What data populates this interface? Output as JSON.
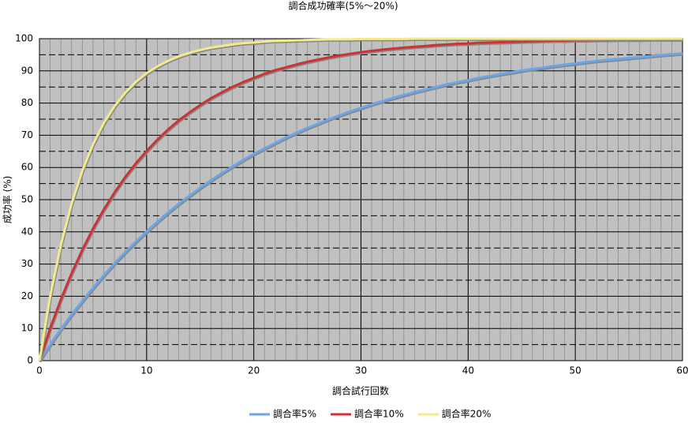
{
  "chart_data": {
    "type": "line",
    "title": "調合成功確率(5%〜20%)",
    "x_label": "調合試行回数",
    "y_label": "成功率 (%)",
    "x": [
      0,
      1,
      2,
      3,
      4,
      5,
      6,
      7,
      8,
      9,
      10,
      11,
      12,
      13,
      14,
      15,
      16,
      17,
      18,
      19,
      20,
      21,
      22,
      23,
      24,
      25,
      26,
      27,
      28,
      29,
      30,
      31,
      32,
      33,
      34,
      35,
      36,
      37,
      38,
      39,
      40,
      41,
      42,
      43,
      44,
      45,
      46,
      47,
      48,
      49,
      50,
      51,
      52,
      53,
      54,
      55,
      56,
      57,
      58,
      59,
      60
    ],
    "series": [
      {
        "name": "調合率5%",
        "color": "#6aa6e8",
        "values": [
          0,
          5.0,
          9.8,
          14.3,
          18.5,
          22.6,
          26.5,
          30.2,
          33.7,
          37.0,
          40.1,
          43.1,
          46.0,
          48.7,
          51.2,
          53.7,
          56.0,
          58.2,
          60.3,
          62.3,
          64.2,
          65.9,
          67.6,
          69.3,
          70.8,
          72.3,
          73.6,
          75.0,
          76.2,
          77.4,
          78.5,
          79.6,
          80.6,
          81.6,
          82.5,
          83.4,
          84.2,
          85.0,
          85.8,
          86.5,
          87.1,
          87.8,
          88.4,
          89.0,
          89.5,
          90.1,
          90.6,
          91.0,
          91.5,
          91.9,
          92.3,
          92.7,
          93.1,
          93.4,
          93.7,
          94.0,
          94.3,
          94.6,
          94.9,
          95.2,
          95.4
        ]
      },
      {
        "name": "調合率10%",
        "color": "#cc3333",
        "values": [
          0,
          10.0,
          19.0,
          27.1,
          34.4,
          41.0,
          46.9,
          52.2,
          57.0,
          61.3,
          65.1,
          68.6,
          71.8,
          74.6,
          77.1,
          79.4,
          81.5,
          83.3,
          85.0,
          86.5,
          87.8,
          89.1,
          90.2,
          91.1,
          92.0,
          92.8,
          93.5,
          94.2,
          94.8,
          95.3,
          95.8,
          96.2,
          96.6,
          96.9,
          97.2,
          97.5,
          97.7,
          98.0,
          98.2,
          98.4,
          98.5,
          98.7,
          98.8,
          98.9,
          99.0,
          99.1,
          99.2,
          99.3,
          99.4,
          99.4,
          99.5,
          99.5,
          99.6,
          99.6,
          99.7,
          99.7,
          99.7,
          99.8,
          99.8,
          99.8,
          99.8
        ]
      },
      {
        "name": "調合率20%",
        "color": "#f2ea8c",
        "values": [
          0,
          20.0,
          36.0,
          48.8,
          59.0,
          67.2,
          73.8,
          79.0,
          83.2,
          86.6,
          89.3,
          91.4,
          93.1,
          94.5,
          95.6,
          96.5,
          97.2,
          97.7,
          98.2,
          98.6,
          98.8,
          99.1,
          99.3,
          99.4,
          99.5,
          99.6,
          99.7,
          99.8,
          99.8,
          99.8,
          99.9,
          99.9,
          99.9,
          99.9,
          99.9,
          100.0,
          100.0,
          100.0,
          100.0,
          100.0,
          100.0,
          100.0,
          100.0,
          100.0,
          100.0,
          100.0,
          100.0,
          100.0,
          100.0,
          100.0,
          100.0,
          100.0,
          100.0,
          100.0,
          100.0,
          100.0,
          100.0,
          100.0,
          100.0,
          100.0,
          100.0
        ]
      }
    ],
    "xlim": [
      0,
      60
    ],
    "xticks": [
      0,
      10,
      20,
      30,
      40,
      50,
      60
    ],
    "ylim": [
      0,
      100
    ],
    "yticks": [
      0,
      10,
      20,
      30,
      40,
      50,
      60,
      70,
      80,
      90,
      100
    ],
    "grid": true,
    "minor_grid": true,
    "legend": "bottom"
  }
}
